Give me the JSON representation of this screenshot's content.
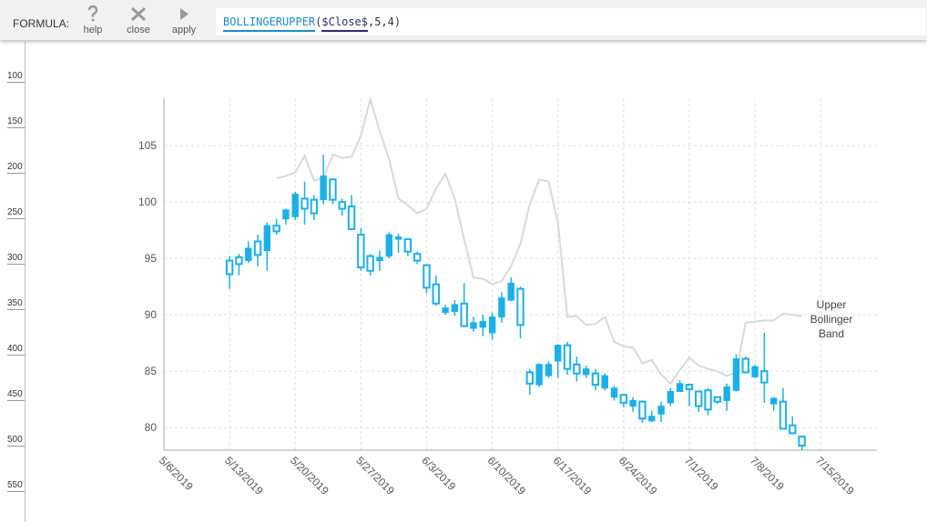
{
  "toolbar": {
    "label": "FORMULA:",
    "buttons": [
      "help",
      "close",
      "apply"
    ],
    "formula": [
      "BOLLINGERUPPER",
      "(",
      "$Close$",
      ",5,4)"
    ]
  },
  "ruler": {
    "labels": [
      100,
      150,
      200,
      250,
      300,
      350,
      400,
      450,
      500,
      550
    ]
  },
  "chart_data": {
    "type": "candlestick",
    "color": "#1ab0e8",
    "x": [
      "5/13/2019",
      "5/14/2019",
      "5/15/2019",
      "5/16/2019",
      "5/17/2019",
      "5/18/2019",
      "5/19/2019",
      "5/20/2019",
      "5/21/2019",
      "5/22/2019",
      "5/23/2019",
      "5/24/2019",
      "5/25/2019",
      "5/26/2019",
      "5/27/2019",
      "5/28/2019",
      "5/29/2019",
      "5/30/2019",
      "5/31/2019",
      "6/1/2019",
      "6/2/2019",
      "6/3/2019",
      "6/4/2019",
      "6/5/2019",
      "6/6/2019",
      "6/7/2019",
      "6/8/2019",
      "6/9/2019",
      "6/10/2019",
      "6/11/2019",
      "6/12/2019",
      "6/13/2019",
      "6/14/2019",
      "6/15/2019",
      "6/16/2019",
      "6/17/2019",
      "6/18/2019",
      "6/19/2019",
      "6/20/2019",
      "6/21/2019",
      "6/22/2019",
      "6/23/2019",
      "6/24/2019",
      "6/25/2019",
      "6/26/2019",
      "6/27/2019",
      "6/28/2019",
      "6/29/2019",
      "6/30/2019",
      "7/1/2019",
      "7/2/2019",
      "7/3/2019",
      "7/4/2019",
      "7/5/2019",
      "7/6/2019",
      "7/7/2019",
      "7/8/2019",
      "7/9/2019",
      "7/10/2019",
      "7/11/2019",
      "7/12/2019",
      "7/13/2019"
    ],
    "open": [
      93.6,
      94.5,
      95.9,
      95.3,
      97.9,
      97.4,
      99.3,
      100.7,
      99.4,
      99.0,
      102.3,
      100.2,
      99.4,
      97.6,
      94.2,
      93.9,
      95.1,
      97.1,
      96.9,
      95.6,
      94.8,
      92.4,
      91.0,
      90.6,
      90.9,
      89.0,
      89.3,
      89.4,
      89.8,
      91.5,
      92.8,
      89.1,
      83.9,
      85.6,
      85.6,
      87.3,
      85.2,
      84.8,
      85.2,
      83.8,
      84.6,
      83.5,
      82.2,
      82.4,
      80.8,
      81.0,
      81.9,
      83.2,
      83.9,
      83.4,
      81.9,
      81.6,
      82.3,
      83.6,
      86.1,
      84.9,
      85.4,
      84.0,
      82.6,
      79.9,
      79.5,
      78.4
    ],
    "high": [
      95.2,
      95.4,
      96.5,
      97.1,
      98.2,
      98.5,
      99.4,
      100.9,
      101.8,
      100.6,
      104.2,
      102.1,
      100.3,
      100.6,
      97.7,
      95.4,
      95.7,
      97.3,
      97.2,
      96.8,
      95.6,
      94.5,
      93.5,
      90.9,
      91.3,
      92.8,
      89.8,
      90.0,
      90.2,
      92.0,
      93.3,
      92.5,
      85.2,
      85.7,
      85.9,
      87.4,
      87.6,
      86.3,
      85.5,
      85.2,
      84.8,
      83.7,
      82.9,
      82.7,
      82.4,
      81.5,
      82.3,
      83.5,
      84.2,
      83.9,
      83.3,
      83.5,
      82.7,
      83.9,
      86.5,
      86.3,
      85.6,
      88.4,
      82.7,
      83.5,
      81.0,
      79.2
    ],
    "low": [
      92.3,
      93.5,
      94.6,
      94.3,
      93.9,
      97.1,
      98.0,
      98.4,
      98.0,
      98.4,
      99.8,
      99.8,
      98.8,
      97.5,
      93.9,
      93.5,
      93.9,
      95.0,
      95.5,
      95.2,
      94.5,
      91.9,
      90.8,
      90.0,
      89.9,
      88.9,
      88.5,
      88.1,
      87.8,
      89.3,
      91.2,
      87.9,
      82.9,
      83.6,
      84.4,
      84.4,
      84.7,
      84.1,
      84.4,
      83.3,
      83.3,
      82.4,
      81.8,
      81.4,
      80.4,
      80.5,
      80.5,
      81.9,
      83.2,
      81.9,
      81.4,
      81.1,
      82.1,
      81.5,
      83.2,
      84.8,
      84.4,
      82.2,
      81.5,
      79.9,
      79.4,
      78.0
    ],
    "close": [
      94.8,
      95.1,
      94.8,
      96.5,
      95.7,
      97.9,
      98.5,
      98.7,
      100.3,
      100.2,
      100.2,
      102.0,
      100.0,
      99.6,
      97.1,
      95.2,
      94.8,
      95.2,
      96.7,
      96.7,
      95.4,
      94.4,
      92.7,
      90.2,
      90.3,
      91.0,
      88.8,
      88.9,
      88.4,
      89.8,
      91.3,
      92.3,
      84.9,
      83.8,
      84.6,
      85.9,
      87.3,
      85.6,
      84.7,
      84.8,
      83.5,
      82.7,
      82.9,
      81.9,
      82.3,
      80.6,
      81.2,
      82.2,
      83.2,
      83.8,
      83.2,
      83.3,
      82.7,
      82.4,
      83.3,
      86.1,
      84.5,
      85.0,
      82.1,
      82.3,
      80.2,
      79.2
    ],
    "band": {
      "color": "#d9d9d9",
      "values": [
        null,
        null,
        null,
        null,
        null,
        102.1,
        102.3,
        102.6,
        104.1,
        101.9,
        102.1,
        104.2,
        103.9,
        104.0,
        105.9,
        109.1,
        106.3,
        103.8,
        100.3,
        99.7,
        99.0,
        99.4,
        101.2,
        102.5,
        100.3,
        96.7,
        93.3,
        93.2,
        92.7,
        93.0,
        94.3,
        96.3,
        99.8,
        102.0,
        101.8,
        98.2,
        89.8,
        89.9,
        89.1,
        89.2,
        89.8,
        87.6,
        87.2,
        87.1,
        85.7,
        86.0,
        84.7,
        83.9,
        85.1,
        86.2,
        85.5,
        85.2,
        85.0,
        84.6,
        84.9,
        89.3,
        89.4,
        89.5,
        89.5,
        90.1,
        90.0,
        89.9
      ]
    },
    "annotation": "Upper Bollinger Band",
    "xlim": [
      "5/6/2019",
      "7/21/2019"
    ],
    "xticks": [
      "5/6/2019",
      "5/13/2019",
      "5/20/2019",
      "5/27/2019",
      "6/3/2019",
      "6/10/2019",
      "6/17/2019",
      "6/24/2019",
      "7/1/2019",
      "7/8/2019",
      "7/15/2019"
    ],
    "ylim": [
      78,
      109.2
    ],
    "yticks": [
      80,
      85,
      90,
      95,
      100,
      105
    ],
    "grid": true
  }
}
